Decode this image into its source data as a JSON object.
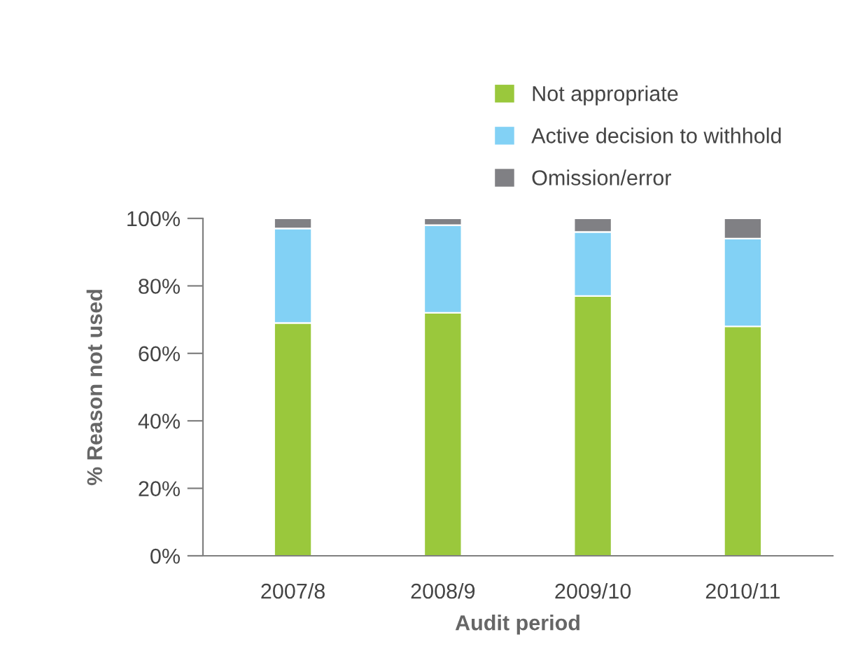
{
  "chart_data": {
    "type": "bar",
    "stacked": true,
    "xlabel": "Audit period",
    "ylabel": "% Reason not used",
    "categories": [
      "2007/8",
      "2008/9",
      "2009/10",
      "2010/11"
    ],
    "series": [
      {
        "name": "Not appropriate",
        "color": "#9ac83c",
        "values": [
          69,
          72,
          77,
          68
        ]
      },
      {
        "name": "Active decision to withhold",
        "color": "#82d1f5",
        "values": [
          28,
          26,
          19,
          26
        ]
      },
      {
        "name": "Omission/error",
        "color": "#808084",
        "values": [
          3,
          2,
          4,
          6
        ]
      }
    ],
    "ylim": [
      0,
      100
    ],
    "yticks": [
      {
        "value": 0,
        "label": "0%"
      },
      {
        "value": 20,
        "label": "20%"
      },
      {
        "value": 40,
        "label": "40%"
      },
      {
        "value": 60,
        "label": "60%"
      },
      {
        "value": 80,
        "label": "80%"
      },
      {
        "value": 100,
        "label": "100%"
      }
    ],
    "grid": false,
    "legend": "top"
  }
}
